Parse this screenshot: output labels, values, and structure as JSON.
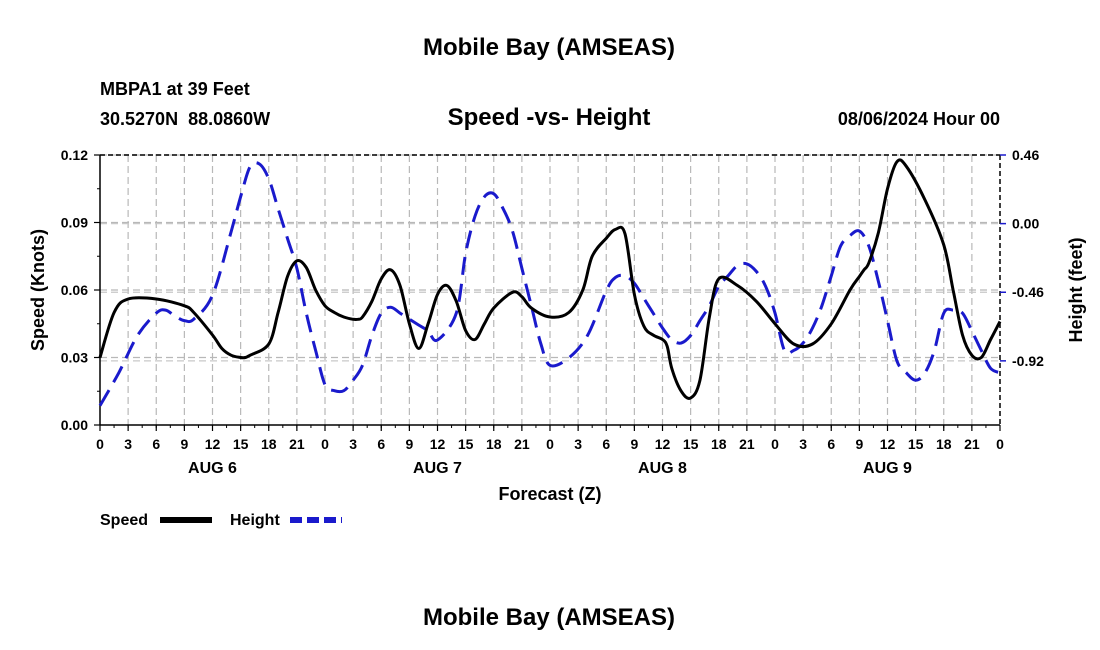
{
  "page": {
    "title_top": "Mobile Bay (AMSEAS)",
    "title_bottom": "Mobile Bay (AMSEAS)",
    "station": "MBPA1 at 39 Feet",
    "coords": "30.5270N  88.0860W",
    "chart_title": "Speed -vs- Height",
    "issue": "08/06/2024 Hour 00"
  },
  "chart_data": {
    "type": "line",
    "title": "Speed -vs- Height",
    "xlabel": "Forecast (Z)",
    "ylabel": "Speed (Knots)",
    "y2label": "Height (feet)",
    "x_range_hours": [
      0,
      96
    ],
    "x_ticks": [
      {
        "h": 0,
        "label": "0"
      },
      {
        "h": 3,
        "label": "3"
      },
      {
        "h": 6,
        "label": "6"
      },
      {
        "h": 9,
        "label": "9"
      },
      {
        "h": 12,
        "label": "12"
      },
      {
        "h": 15,
        "label": "15"
      },
      {
        "h": 18,
        "label": "18"
      },
      {
        "h": 21,
        "label": "21"
      },
      {
        "h": 24,
        "label": "0"
      },
      {
        "h": 27,
        "label": "3"
      },
      {
        "h": 30,
        "label": "6"
      },
      {
        "h": 33,
        "label": "9"
      },
      {
        "h": 36,
        "label": "12"
      },
      {
        "h": 39,
        "label": "15"
      },
      {
        "h": 42,
        "label": "18"
      },
      {
        "h": 45,
        "label": "21"
      },
      {
        "h": 48,
        "label": "0"
      },
      {
        "h": 51,
        "label": "3"
      },
      {
        "h": 54,
        "label": "6"
      },
      {
        "h": 57,
        "label": "9"
      },
      {
        "h": 60,
        "label": "12"
      },
      {
        "h": 63,
        "label": "15"
      },
      {
        "h": 66,
        "label": "18"
      },
      {
        "h": 69,
        "label": "21"
      },
      {
        "h": 72,
        "label": "0"
      },
      {
        "h": 75,
        "label": "3"
      },
      {
        "h": 78,
        "label": "6"
      },
      {
        "h": 81,
        "label": "9"
      },
      {
        "h": 84,
        "label": "12"
      },
      {
        "h": 87,
        "label": "15"
      },
      {
        "h": 90,
        "label": "18"
      },
      {
        "h": 93,
        "label": "21"
      },
      {
        "h": 96,
        "label": "0"
      }
    ],
    "day_labels": [
      {
        "h": 12,
        "label": "AUG 6"
      },
      {
        "h": 36,
        "label": "AUG 7"
      },
      {
        "h": 60,
        "label": "AUG 8"
      },
      {
        "h": 84,
        "label": "AUG 9"
      }
    ],
    "y_left": {
      "min": 0,
      "max": 0.12,
      "ticks": [
        {
          "v": 0,
          "label": "0.00"
        },
        {
          "v": 0.03,
          "label": "0.03"
        },
        {
          "v": 0.06,
          "label": "0.06"
        },
        {
          "v": 0.09,
          "label": "0.09"
        },
        {
          "v": 0.12,
          "label": "0.12"
        }
      ]
    },
    "y_right": {
      "min": -1.35,
      "max": 0.46,
      "ticks": [
        {
          "v": 0.46,
          "label": "0.46"
        },
        {
          "v": 0.0,
          "label": "0.00"
        },
        {
          "v": -0.46,
          "label": "-0.46"
        },
        {
          "v": -0.92,
          "label": "-0.92"
        }
      ]
    },
    "grid": true,
    "legend_position": "bottom-left",
    "series": [
      {
        "name": "Speed",
        "axis": "left",
        "color": "#000000",
        "dash": "solid",
        "x": [
          0,
          1.5,
          3,
          6,
          9,
          10,
          12,
          13,
          14,
          15,
          15.5,
          16,
          18,
          19,
          20,
          21,
          22,
          23,
          24,
          25,
          26,
          27,
          27.5,
          28,
          29,
          30,
          31,
          32,
          33,
          34,
          35,
          36,
          37,
          38,
          39,
          40,
          41,
          42,
          44,
          45,
          46,
          48,
          50,
          51.5,
          52.5,
          54,
          55,
          56,
          57,
          58,
          59,
          60,
          60.5,
          61,
          62,
          63,
          64,
          65,
          66,
          68,
          70,
          72,
          74,
          76,
          78,
          80,
          81,
          81.5,
          82,
          83,
          84,
          85,
          86,
          88,
          90,
          91,
          92,
          93,
          94,
          95,
          96
        ],
        "y": [
          0.03,
          0.05,
          0.056,
          0.056,
          0.053,
          0.05,
          0.04,
          0.034,
          0.031,
          0.03,
          0.03,
          0.031,
          0.036,
          0.05,
          0.066,
          0.073,
          0.07,
          0.06,
          0.053,
          0.05,
          0.048,
          0.047,
          0.047,
          0.048,
          0.055,
          0.065,
          0.069,
          0.062,
          0.045,
          0.034,
          0.045,
          0.058,
          0.062,
          0.055,
          0.042,
          0.038,
          0.045,
          0.052,
          0.059,
          0.057,
          0.052,
          0.048,
          0.05,
          0.06,
          0.075,
          0.083,
          0.087,
          0.085,
          0.058,
          0.044,
          0.04,
          0.038,
          0.035,
          0.025,
          0.015,
          0.012,
          0.02,
          0.048,
          0.065,
          0.062,
          0.055,
          0.045,
          0.036,
          0.036,
          0.045,
          0.06,
          0.066,
          0.069,
          0.072,
          0.085,
          0.105,
          0.117,
          0.115,
          0.1,
          0.08,
          0.06,
          0.04,
          0.031,
          0.03,
          0.038,
          0.046
        ]
      },
      {
        "name": "Height",
        "axis": "right",
        "color": "#1a1acc",
        "dash": "dashed",
        "x": [
          0,
          2,
          4,
          6,
          7,
          8,
          9,
          10,
          12,
          14,
          15,
          16,
          17,
          18,
          19,
          20,
          21,
          22,
          23,
          24,
          25,
          26,
          27,
          28,
          29,
          30,
          31,
          32,
          33,
          34,
          35,
          36,
          38,
          39,
          40,
          41,
          42,
          43,
          44,
          45,
          46,
          47,
          48,
          50,
          52,
          54,
          55,
          56,
          57,
          58,
          59,
          60,
          61,
          62,
          63,
          64,
          65,
          66,
          67,
          68,
          69,
          70,
          71,
          72,
          73,
          74,
          75,
          76,
          77,
          78,
          79,
          80,
          81,
          82,
          83,
          84,
          85,
          86,
          87,
          88,
          89,
          90,
          91,
          92,
          93,
          94,
          95,
          96
        ],
        "y": [
          -1.22,
          -1.0,
          -0.75,
          -0.6,
          -0.58,
          -0.62,
          -0.65,
          -0.64,
          -0.48,
          -0.05,
          0.18,
          0.38,
          0.4,
          0.3,
          0.1,
          -0.1,
          -0.3,
          -0.6,
          -0.85,
          -1.08,
          -1.12,
          -1.12,
          -1.05,
          -0.95,
          -0.75,
          -0.6,
          -0.56,
          -0.6,
          -0.64,
          -0.68,
          -0.72,
          -0.78,
          -0.6,
          -0.2,
          0.05,
          0.18,
          0.2,
          0.1,
          -0.05,
          -0.3,
          -0.55,
          -0.8,
          -0.95,
          -0.9,
          -0.75,
          -0.45,
          -0.36,
          -0.35,
          -0.4,
          -0.5,
          -0.6,
          -0.7,
          -0.78,
          -0.8,
          -0.75,
          -0.65,
          -0.55,
          -0.42,
          -0.35,
          -0.28,
          -0.27,
          -0.32,
          -0.42,
          -0.6,
          -0.85,
          -0.85,
          -0.8,
          -0.7,
          -0.55,
          -0.35,
          -0.15,
          -0.08,
          -0.05,
          -0.15,
          -0.38,
          -0.65,
          -0.92,
          -1.0,
          -1.05,
          -1.0,
          -0.85,
          -0.6,
          -0.58,
          -0.6,
          -0.72,
          -0.85,
          -0.97,
          -1.0
        ]
      }
    ]
  },
  "legend": {
    "items": [
      {
        "label": "Speed",
        "color": "#000000",
        "dash": "solid"
      },
      {
        "label": "Height",
        "color": "#1a1acc",
        "dash": "dashed"
      }
    ]
  }
}
